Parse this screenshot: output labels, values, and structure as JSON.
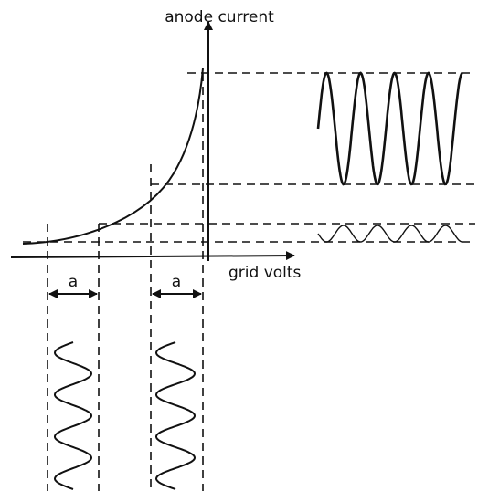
{
  "axis_labels": {
    "y": "anode current",
    "x": "grid volts"
  },
  "annotations": [
    "a",
    "a"
  ]
}
